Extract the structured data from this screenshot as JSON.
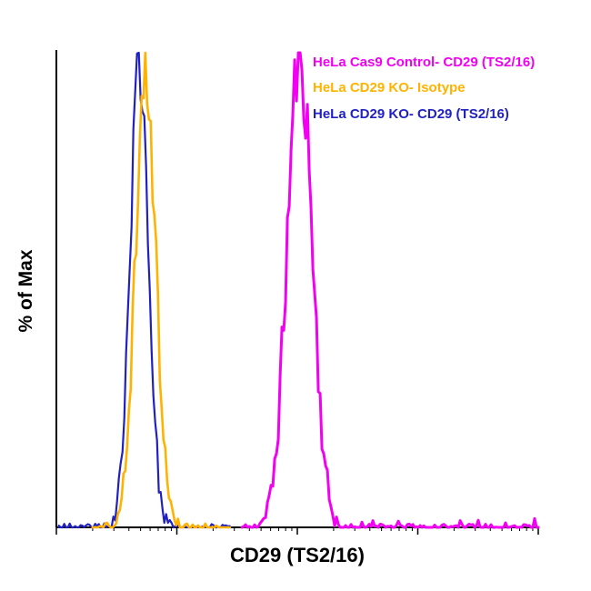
{
  "figure": {
    "background_color": "#ffffff",
    "axis_color": "#000000"
  },
  "axes": {
    "x_label": "CD29 (TS2/16)",
    "y_label": "% of Max"
  },
  "legend": {
    "position": "top-right",
    "items": [
      {
        "label": "HeLa Cas9 Control- CD29 (TS2/16)",
        "color": "#F200F2"
      },
      {
        "label": "HeLa CD29 KO- Isotype",
        "color": "#FFB300"
      },
      {
        "label": "HeLa CD29 KO- CD29 (TS2/16)",
        "color": "#2121C2"
      }
    ]
  },
  "chart_data": {
    "type": "line",
    "subtype": "flow_cytometry_histogram_overlay",
    "title": "",
    "xlabel": "CD29 (TS2/16)",
    "ylabel": "% of Max",
    "x_scale": "log",
    "x_decades": 4,
    "ylim": [
      0,
      100
    ],
    "grid": false,
    "legend_position": "top-right",
    "series": [
      {
        "name": "HeLa Cas9 Control- CD29 (TS2/16)",
        "color": "#F200F2",
        "peak_center_rel": 0.505,
        "peak_sigma_rel": 0.026,
        "peak_height_pct": 100,
        "domain_rel": [
          0.385,
          1.0
        ],
        "noise_floor_pct": 0.7,
        "peak_noise_pct": 9,
        "spike_prob": 0.1,
        "spike_max_pct": 2.2,
        "stroke_width": 3,
        "seed": 11
      },
      {
        "name": "HeLa CD29 KO- CD29 (TS2/16)",
        "color": "#2121C2",
        "peak_center_rel": 0.172,
        "peak_sigma_rel": 0.019,
        "peak_height_pct": 98,
        "domain_rel": [
          0.005,
          0.36
        ],
        "noise_floor_pct": 0.8,
        "peak_noise_pct": 6.5,
        "spike_prob": 0.08,
        "spike_max_pct": 1.6,
        "stroke_width": 2.2,
        "seed": 23
      },
      {
        "name": "HeLa CD29 KO- Isotype",
        "color": "#FFB300",
        "peak_center_rel": 0.185,
        "peak_sigma_rel": 0.021,
        "peak_height_pct": 95,
        "domain_rel": [
          0.075,
          0.36
        ],
        "noise_floor_pct": 0.8,
        "peak_noise_pct": 6.5,
        "spike_prob": 0.06,
        "spike_max_pct": 1.4,
        "stroke_width": 2.6,
        "seed": 37
      }
    ]
  }
}
